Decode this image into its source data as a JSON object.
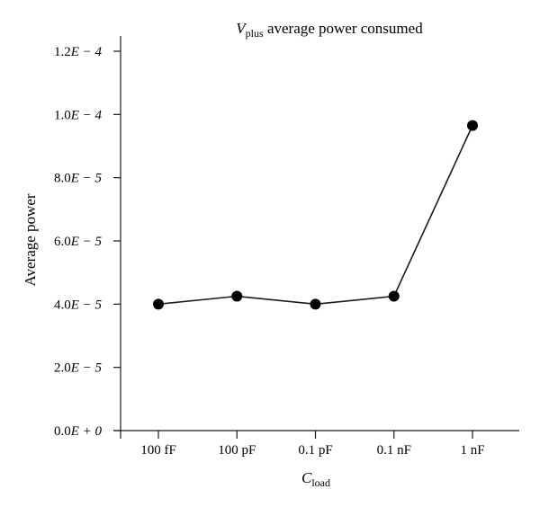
{
  "chart_data": {
    "type": "line",
    "title": {
      "var": "V",
      "sub": "plus",
      "rest": " average power consumed"
    },
    "xlabel": {
      "var": "C",
      "sub": "load"
    },
    "ylabel": "Average power",
    "categories": [
      "100 fF",
      "100 pF",
      "0.1 pF",
      "0.1 nF",
      "1 nF"
    ],
    "values": [
      4e-05,
      4.25e-05,
      4e-05,
      4.25e-05,
      9.65e-05
    ],
    "ylim": [
      0,
      0.00012
    ],
    "yticks": [
      {
        "value": 0,
        "mantissa": "0.0",
        "exp": "+ 0"
      },
      {
        "value": 2e-05,
        "mantissa": "2.0",
        "exp": "− 5"
      },
      {
        "value": 4e-05,
        "mantissa": "4.0",
        "exp": "− 5"
      },
      {
        "value": 6e-05,
        "mantissa": "6.0",
        "exp": "− 5"
      },
      {
        "value": 8e-05,
        "mantissa": "8.0",
        "exp": "− 5"
      },
      {
        "value": 0.0001,
        "mantissa": "1.0",
        "exp": "− 4"
      },
      {
        "value": 0.00012,
        "mantissa": "1.2",
        "exp": "− 4"
      }
    ],
    "grid": false,
    "line_color": "#1a1a1a",
    "marker_color": "#000000"
  }
}
